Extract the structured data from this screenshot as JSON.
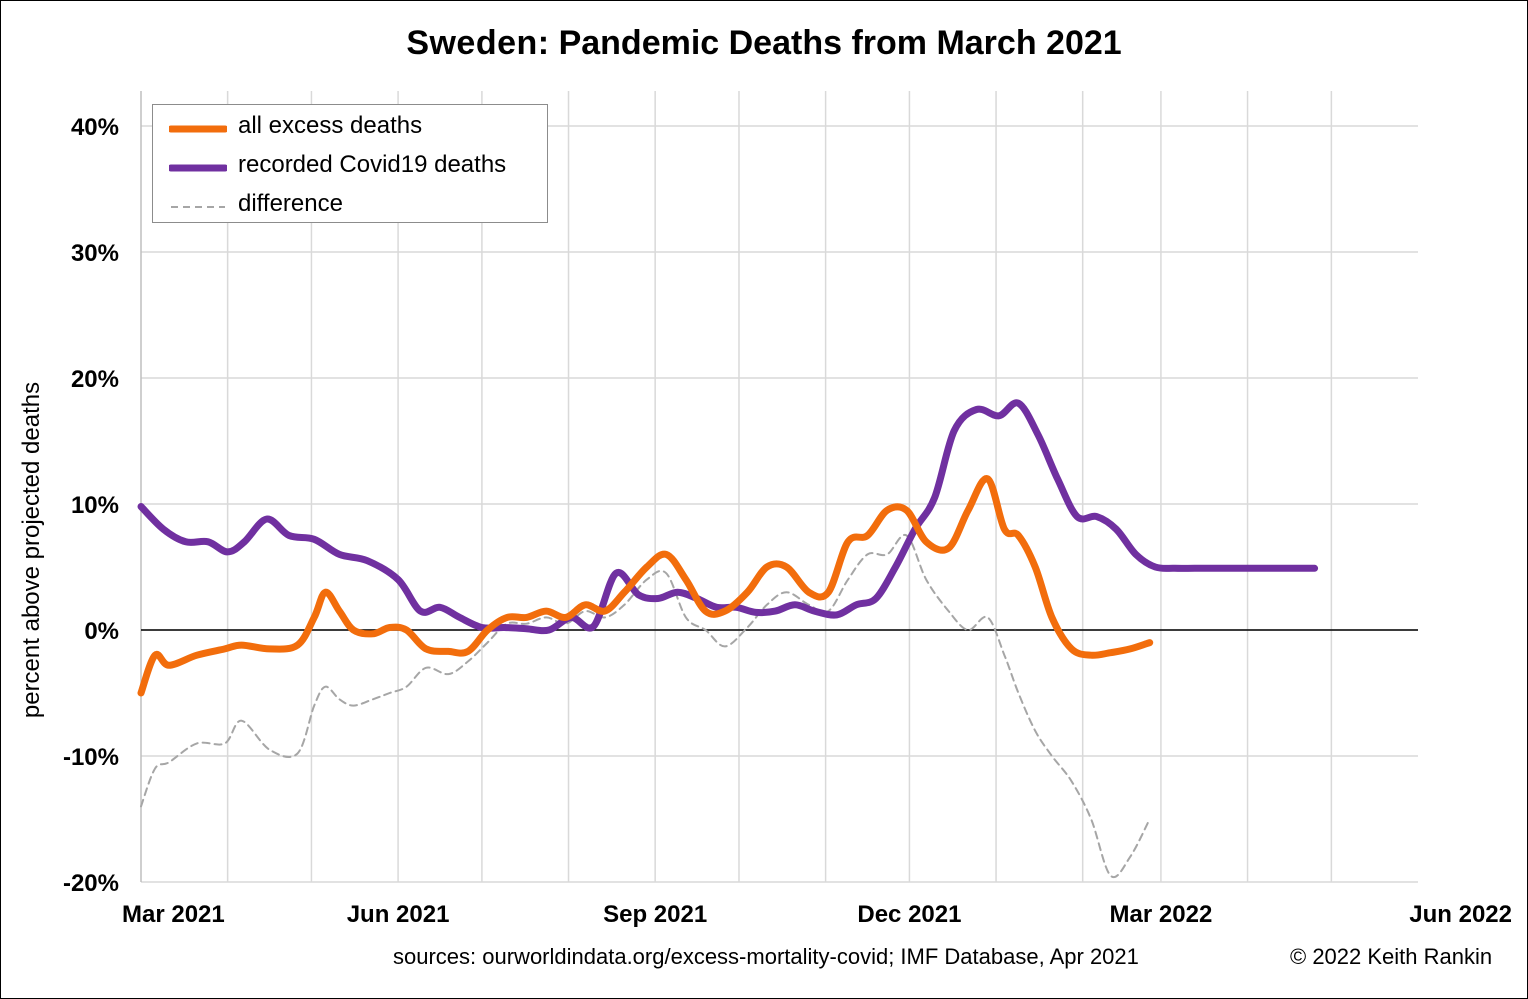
{
  "title": {
    "country": "Sweden",
    "rest": ": Pandemic Deaths from March 2021"
  },
  "footer": {
    "sources": "sources: ourworldindata.org/excess-mortality-covid; IMF Database, Apr 2021",
    "copyright": "© 2022 Keith Rankin"
  },
  "colors": {
    "excess": "#f26d0c",
    "covid": "#7030a0",
    "difference": "#a6a6a6",
    "grid": "#d9d9d9"
  },
  "chart_data": {
    "type": "line",
    "title": "Sweden: Pandemic Deaths from March 2021",
    "xlabel": "",
    "ylabel": "percent above projected deaths",
    "ylim": [
      -20,
      40
    ],
    "xlim": [
      "2021-02-28",
      "2022-05-31"
    ],
    "y_ticks": [
      40,
      30,
      20,
      10,
      0,
      -10,
      -20
    ],
    "y_tick_labels": [
      "40%",
      "30%",
      "20%",
      "10%",
      "0%",
      "-10%",
      "-20%"
    ],
    "x_tick_labels": [
      "Mar 2021",
      "Jun 2021",
      "Sep 2021",
      "Dec 2021",
      "Mar 2022",
      "Jun 2022"
    ],
    "x_tick_dates": [
      "2021-02-28",
      "2021-05-31",
      "2021-08-31",
      "2021-11-30",
      "2022-02-28",
      "2022-05-31"
    ],
    "grid": true,
    "legend_position": "top-left",
    "series": [
      {
        "name": "all excess deaths",
        "color": "#f26d0c",
        "dates": [
          "2021-02-28",
          "2021-03-05",
          "2021-03-10",
          "2021-03-20",
          "2021-03-30",
          "2021-04-05",
          "2021-04-15",
          "2021-04-25",
          "2021-05-01",
          "2021-05-05",
          "2021-05-10",
          "2021-05-15",
          "2021-05-22",
          "2021-05-28",
          "2021-06-03",
          "2021-06-10",
          "2021-06-18",
          "2021-06-25",
          "2021-07-02",
          "2021-07-09",
          "2021-07-16",
          "2021-07-23",
          "2021-07-30",
          "2021-08-06",
          "2021-08-13",
          "2021-08-20",
          "2021-08-28",
          "2021-09-04",
          "2021-09-11",
          "2021-09-18",
          "2021-09-25",
          "2021-10-03",
          "2021-10-10",
          "2021-10-17",
          "2021-10-25",
          "2021-11-01",
          "2021-11-08",
          "2021-11-15",
          "2021-11-22",
          "2021-11-29",
          "2021-12-06",
          "2021-12-14",
          "2021-12-21",
          "2021-12-28",
          "2022-01-03",
          "2022-01-08",
          "2022-01-14",
          "2022-01-20",
          "2022-01-27",
          "2022-02-03",
          "2022-02-10",
          "2022-02-17",
          "2022-02-24",
          "2022-03-03",
          "2022-03-10",
          "2022-03-17",
          "2022-03-24"
        ],
        "values": [
          -5,
          -2,
          -2.8,
          -2,
          -1.5,
          -1.2,
          -1.5,
          -1.2,
          1,
          3,
          1.5,
          0,
          -0.3,
          0.2,
          0,
          -1.5,
          -1.7,
          -1.7,
          0,
          1,
          1,
          1.5,
          1,
          2,
          1.5,
          3,
          5,
          6,
          4,
          1.5,
          1.5,
          3,
          5,
          5,
          3,
          3,
          7,
          7.5,
          9.5,
          9.5,
          7,
          6.5,
          9.5,
          12,
          8,
          7.5,
          5,
          1,
          -1.5,
          -2,
          -1.8,
          -1.5,
          -1,
          -0.5,
          0,
          0,
          0
        ]
      },
      {
        "name": "recorded Covid19 deaths",
        "color": "#7030a0",
        "dates": [
          "2021-02-28",
          "2021-03-08",
          "2021-03-16",
          "2021-03-24",
          "2021-03-31",
          "2021-04-06",
          "2021-04-14",
          "2021-04-22",
          "2021-05-01",
          "2021-05-10",
          "2021-05-20",
          "2021-05-31",
          "2021-06-08",
          "2021-06-15",
          "2021-06-22",
          "2021-06-30",
          "2021-07-08",
          "2021-07-16",
          "2021-07-24",
          "2021-08-01",
          "2021-08-09",
          "2021-08-17",
          "2021-08-25",
          "2021-09-01",
          "2021-09-08",
          "2021-09-15",
          "2021-09-22",
          "2021-09-29",
          "2021-10-06",
          "2021-10-13",
          "2021-10-20",
          "2021-10-27",
          "2021-11-04",
          "2021-11-11",
          "2021-11-18",
          "2021-11-25",
          "2021-12-02",
          "2021-12-09",
          "2021-12-16",
          "2021-12-24",
          "2022-01-01",
          "2022-01-08",
          "2022-01-15",
          "2022-01-22",
          "2022-01-29",
          "2022-02-05",
          "2022-02-12",
          "2022-02-19",
          "2022-02-26",
          "2022-03-05",
          "2022-03-12",
          "2022-03-19",
          "2022-03-26",
          "2022-04-03",
          "2022-04-10",
          "2022-04-17",
          "2022-04-24"
        ],
        "values": [
          9.8,
          8,
          7,
          7,
          6.2,
          7,
          8.8,
          7.5,
          7.2,
          6,
          5.5,
          4,
          1.5,
          1.8,
          1,
          0.2,
          0.2,
          0.1,
          0,
          1,
          0.3,
          4.5,
          2.8,
          2.5,
          3,
          2.5,
          1.8,
          1.8,
          1.4,
          1.5,
          2,
          1.5,
          1.2,
          2,
          2.5,
          5,
          8,
          10.5,
          15.8,
          17.5,
          17,
          18,
          15.5,
          12,
          9,
          9,
          8,
          6,
          5,
          4.9,
          4.9,
          4.9,
          4.9,
          4.9,
          4.9,
          4.9,
          4.9
        ]
      },
      {
        "name": "difference",
        "color": "#a6a6a6",
        "dates": [
          "2021-02-28",
          "2021-03-05",
          "2021-03-10",
          "2021-03-20",
          "2021-03-30",
          "2021-04-05",
          "2021-04-15",
          "2021-04-25",
          "2021-05-01",
          "2021-05-05",
          "2021-05-10",
          "2021-05-15",
          "2021-05-22",
          "2021-05-28",
          "2021-06-03",
          "2021-06-10",
          "2021-06-18",
          "2021-06-25",
          "2021-07-02",
          "2021-07-09",
          "2021-07-16",
          "2021-07-23",
          "2021-07-30",
          "2021-08-06",
          "2021-08-13",
          "2021-08-20",
          "2021-08-28",
          "2021-09-04",
          "2021-09-11",
          "2021-09-18",
          "2021-09-25",
          "2021-10-03",
          "2021-10-10",
          "2021-10-17",
          "2021-10-25",
          "2021-11-01",
          "2021-11-08",
          "2021-11-15",
          "2021-11-22",
          "2021-11-29",
          "2021-12-06",
          "2021-12-14",
          "2021-12-21",
          "2021-12-28",
          "2022-01-03",
          "2022-01-08",
          "2022-01-14",
          "2022-01-20",
          "2022-01-27",
          "2022-02-03",
          "2022-02-10",
          "2022-02-17",
          "2022-02-24",
          "2022-03-03",
          "2022-03-10",
          "2022-03-17",
          "2022-03-24"
        ],
        "values": [
          -14,
          -11,
          -10.5,
          -9,
          -9,
          -7.2,
          -9.5,
          -9.8,
          -6,
          -4.5,
          -5.5,
          -6,
          -5.5,
          -5,
          -4.5,
          -3,
          -3.5,
          -2.5,
          -1,
          0.5,
          0.5,
          1,
          0.5,
          1.5,
          1,
          2,
          4,
          4.5,
          1,
          0,
          -1.3,
          0.2,
          2,
          3,
          2,
          1.5,
          4,
          6,
          6,
          7.5,
          4,
          1.5,
          0,
          1,
          -2,
          -5,
          -8,
          -10,
          -12,
          -15,
          -19.5,
          -18,
          -15,
          -12,
          -10,
          -9.5,
          -9
        ]
      }
    ]
  }
}
